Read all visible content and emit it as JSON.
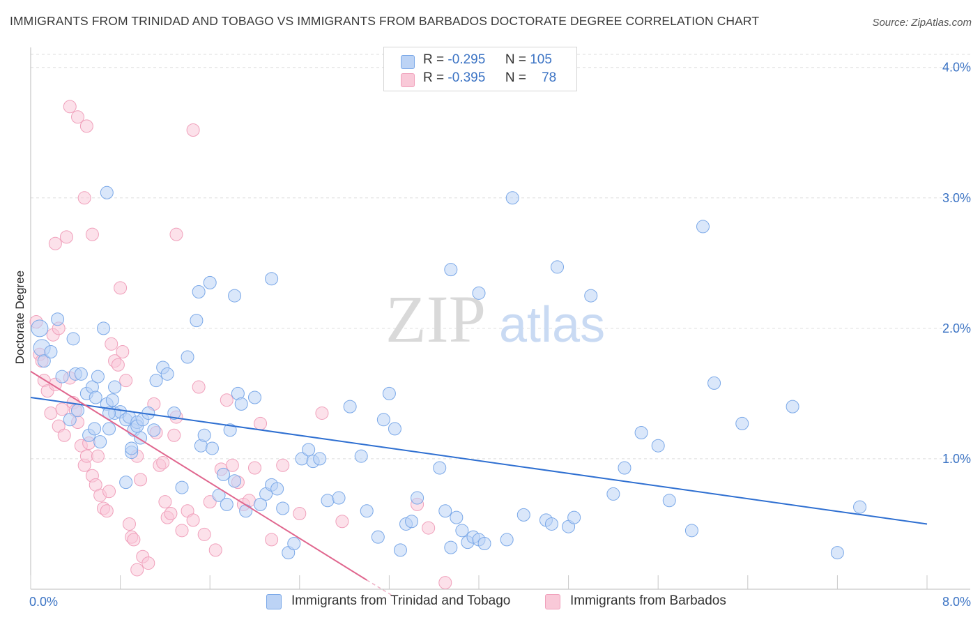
{
  "title": "IMMIGRANTS FROM TRINIDAD AND TOBAGO VS IMMIGRANTS FROM BARBADOS DOCTORATE DEGREE CORRELATION CHART",
  "source": "Source: ZipAtlas.com",
  "watermark": {
    "zip": "ZIP",
    "atlas": "atlas"
  },
  "legend": {
    "r_label": "R =",
    "n_label": "N =",
    "rows": [
      {
        "r": "-0.295",
        "n": "105",
        "color": "#7aa8e8",
        "fill": "#bcd3f5"
      },
      {
        "r": "-0.395",
        "n": "78",
        "color": "#f0a0bb",
        "fill": "#f9c9d8"
      }
    ]
  },
  "chart_data": {
    "type": "scatter",
    "xlabel": "",
    "ylabel": "Doctorate Degree",
    "xlim": [
      0,
      8
    ],
    "ylim": [
      0,
      4.1
    ],
    "x_tick_labels": [
      "0.0%",
      "8.0%"
    ],
    "y_tick_labels": [
      "1.0%",
      "2.0%",
      "3.0%",
      "4.0%"
    ],
    "y_ticks": [
      1,
      2,
      3,
      4
    ],
    "grid": true,
    "series": [
      {
        "name": "Immigrants from Trinidad and Tobago",
        "color": "#7aa8e8",
        "fill": "#bcd3f5",
        "trend_color": "#2e6fd1",
        "trend": {
          "x0": 0.0,
          "y0": 1.47,
          "x1": 8.0,
          "y1": 0.5
        },
        "points": [
          [
            0.08,
            2.0
          ],
          [
            0.1,
            1.85
          ],
          [
            0.12,
            1.75
          ],
          [
            0.18,
            1.82
          ],
          [
            0.24,
            2.07
          ],
          [
            0.28,
            1.63
          ],
          [
            0.35,
            1.3
          ],
          [
            0.38,
            1.92
          ],
          [
            0.4,
            1.65
          ],
          [
            0.42,
            1.37
          ],
          [
            0.45,
            1.65
          ],
          [
            0.5,
            1.5
          ],
          [
            0.55,
            1.55
          ],
          [
            0.52,
            1.18
          ],
          [
            0.58,
            1.47
          ],
          [
            0.6,
            1.63
          ],
          [
            0.57,
            1.23
          ],
          [
            0.65,
            2.0
          ],
          [
            0.7,
            1.23
          ],
          [
            0.75,
            1.35
          ],
          [
            0.8,
            1.36
          ],
          [
            0.85,
            1.3
          ],
          [
            0.88,
            1.32
          ],
          [
            0.9,
            1.05
          ],
          [
            0.92,
            1.22
          ],
          [
            0.95,
            1.28
          ],
          [
            0.98,
            1.16
          ],
          [
            0.68,
            1.42
          ],
          [
            0.62,
            1.13
          ],
          [
            0.75,
            1.55
          ],
          [
            0.73,
            1.45
          ],
          [
            0.68,
            3.04
          ],
          [
            0.7,
            1.35
          ],
          [
            0.85,
            0.82
          ],
          [
            0.9,
            1.08
          ],
          [
            0.95,
            1.25
          ],
          [
            1.0,
            1.3
          ],
          [
            1.05,
            1.35
          ],
          [
            1.1,
            1.22
          ],
          [
            1.12,
            1.6
          ],
          [
            1.18,
            1.7
          ],
          [
            1.22,
            1.65
          ],
          [
            1.28,
            1.35
          ],
          [
            1.35,
            0.78
          ],
          [
            1.4,
            1.78
          ],
          [
            1.48,
            2.06
          ],
          [
            1.52,
            1.1
          ],
          [
            1.55,
            1.18
          ],
          [
            1.62,
            1.08
          ],
          [
            1.68,
            0.72
          ],
          [
            1.72,
            0.88
          ],
          [
            1.75,
            0.65
          ],
          [
            1.78,
            1.22
          ],
          [
            1.82,
            0.83
          ],
          [
            1.85,
            1.5
          ],
          [
            1.88,
            1.42
          ],
          [
            1.92,
            0.6
          ],
          [
            2.0,
            1.47
          ],
          [
            2.05,
            0.65
          ],
          [
            2.1,
            0.73
          ],
          [
            2.15,
            0.8
          ],
          [
            2.2,
            0.77
          ],
          [
            2.25,
            0.62
          ],
          [
            2.3,
            0.28
          ],
          [
            2.35,
            0.35
          ],
          [
            2.42,
            1.0
          ],
          [
            2.48,
            1.07
          ],
          [
            2.52,
            0.98
          ],
          [
            2.58,
            1.0
          ],
          [
            2.65,
            0.68
          ],
          [
            2.75,
            0.7
          ],
          [
            2.85,
            1.4
          ],
          [
            2.95,
            1.02
          ],
          [
            3.0,
            0.6
          ],
          [
            3.1,
            0.4
          ],
          [
            3.15,
            1.3
          ],
          [
            3.2,
            1.5
          ],
          [
            3.25,
            1.23
          ],
          [
            3.3,
            0.3
          ],
          [
            3.35,
            0.5
          ],
          [
            3.4,
            0.52
          ],
          [
            3.45,
            0.7
          ],
          [
            3.65,
            0.93
          ],
          [
            3.7,
            0.6
          ],
          [
            3.75,
            0.32
          ],
          [
            3.8,
            0.55
          ],
          [
            3.85,
            0.45
          ],
          [
            3.9,
            0.36
          ],
          [
            3.95,
            0.4
          ],
          [
            4.0,
            0.38
          ],
          [
            4.05,
            0.35
          ],
          [
            4.25,
            0.38
          ],
          [
            4.4,
            0.57
          ],
          [
            4.6,
            0.53
          ],
          [
            4.65,
            0.5
          ],
          [
            4.8,
            0.48
          ],
          [
            4.85,
            0.55
          ],
          [
            1.5,
            2.28
          ],
          [
            1.6,
            2.35
          ],
          [
            1.82,
            2.25
          ],
          [
            2.15,
            2.38
          ],
          [
            3.75,
            2.45
          ],
          [
            4.0,
            2.27
          ],
          [
            4.3,
            3.0
          ],
          [
            4.7,
            2.47
          ],
          [
            5.0,
            2.25
          ],
          [
            5.2,
            0.73
          ],
          [
            5.45,
            1.2
          ],
          [
            5.6,
            1.1
          ],
          [
            5.7,
            0.68
          ],
          [
            5.9,
            0.45
          ],
          [
            6.1,
            1.58
          ],
          [
            6.35,
            1.27
          ],
          [
            6.8,
            1.4
          ],
          [
            7.4,
            0.63
          ],
          [
            7.2,
            0.28
          ],
          [
            5.3,
            0.93
          ],
          [
            6.0,
            2.78
          ]
        ]
      },
      {
        "name": "Immigrants from Barbados",
        "color": "#f0a0bb",
        "fill": "#f9c9d8",
        "trend_color": "#e0668e",
        "trend": {
          "x0": 0.0,
          "y0": 1.67,
          "x1": 3.0,
          "y1": 0.07
        },
        "points": [
          [
            0.05,
            2.05
          ],
          [
            0.08,
            1.8
          ],
          [
            0.1,
            1.75
          ],
          [
            0.12,
            1.6
          ],
          [
            0.15,
            1.52
          ],
          [
            0.18,
            1.35
          ],
          [
            0.2,
            1.95
          ],
          [
            0.22,
            1.57
          ],
          [
            0.25,
            1.25
          ],
          [
            0.28,
            1.38
          ],
          [
            0.3,
            1.18
          ],
          [
            0.32,
            2.7
          ],
          [
            0.35,
            1.62
          ],
          [
            0.38,
            1.43
          ],
          [
            0.4,
            1.37
          ],
          [
            0.42,
            1.28
          ],
          [
            0.45,
            1.1
          ],
          [
            0.48,
            0.95
          ],
          [
            0.5,
            1.02
          ],
          [
            0.52,
            1.12
          ],
          [
            0.55,
            0.87
          ],
          [
            0.58,
            0.8
          ],
          [
            0.6,
            1.02
          ],
          [
            0.62,
            0.72
          ],
          [
            0.65,
            0.62
          ],
          [
            0.68,
            0.6
          ],
          [
            0.7,
            0.75
          ],
          [
            0.72,
            1.88
          ],
          [
            0.75,
            1.75
          ],
          [
            0.78,
            1.72
          ],
          [
            0.8,
            2.31
          ],
          [
            0.82,
            1.82
          ],
          [
            0.85,
            1.6
          ],
          [
            0.88,
            0.5
          ],
          [
            0.9,
            0.4
          ],
          [
            0.92,
            0.38
          ],
          [
            0.95,
            1.02
          ],
          [
            0.98,
            0.84
          ],
          [
            1.0,
            0.25
          ],
          [
            1.05,
            0.2
          ],
          [
            1.1,
            1.42
          ],
          [
            1.12,
            1.2
          ],
          [
            1.15,
            0.95
          ],
          [
            1.18,
            0.97
          ],
          [
            1.2,
            0.67
          ],
          [
            1.22,
            0.55
          ],
          [
            1.25,
            0.58
          ],
          [
            1.28,
            1.18
          ],
          [
            1.3,
            1.32
          ],
          [
            1.35,
            0.45
          ],
          [
            1.4,
            0.6
          ],
          [
            1.45,
            0.53
          ],
          [
            1.5,
            1.55
          ],
          [
            1.55,
            0.42
          ],
          [
            1.6,
            0.67
          ],
          [
            1.65,
            0.3
          ],
          [
            1.7,
            0.92
          ],
          [
            1.75,
            1.45
          ],
          [
            1.8,
            0.95
          ],
          [
            1.85,
            0.82
          ],
          [
            1.9,
            0.65
          ],
          [
            1.95,
            0.68
          ],
          [
            2.0,
            0.93
          ],
          [
            2.05,
            1.27
          ],
          [
            0.35,
            3.7
          ],
          [
            0.42,
            3.62
          ],
          [
            0.5,
            3.55
          ],
          [
            0.48,
            3.0
          ],
          [
            0.55,
            2.72
          ],
          [
            0.22,
            2.65
          ],
          [
            0.25,
            2.0
          ],
          [
            1.3,
            2.72
          ],
          [
            1.45,
            3.52
          ],
          [
            2.15,
            0.38
          ],
          [
            2.25,
            0.95
          ],
          [
            3.45,
            0.65
          ],
          [
            3.55,
            0.47
          ],
          [
            3.7,
            0.05
          ],
          [
            2.4,
            0.58
          ],
          [
            2.6,
            1.35
          ],
          [
            2.78,
            0.52
          ],
          [
            0.95,
            0.15
          ]
        ]
      }
    ]
  },
  "bottom_legend": [
    {
      "label": "Immigrants from Trinidad and Tobago"
    },
    {
      "label": "Immigrants from Barbados"
    }
  ]
}
